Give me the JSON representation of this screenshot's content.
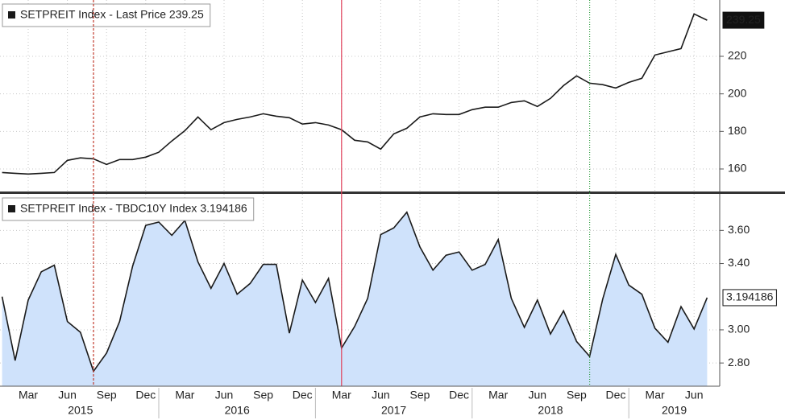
{
  "chart_data": [
    {
      "type": "line",
      "series": [
        {
          "name": "SETPREIT Index - Last Price 239.25",
          "color": "#1a1a1a",
          "values": [
            158.1,
            157.7,
            157.3,
            157.7,
            158.1,
            164.6,
            165.9,
            165.4,
            162.4,
            165,
            165,
            166.3,
            168.9,
            174.9,
            180.4,
            187.7,
            180.9,
            184.7,
            186.4,
            187.7,
            189.4,
            188.1,
            187.3,
            183.9,
            184.7,
            183.4,
            180.9,
            175.3,
            174.4,
            170.6,
            178.7,
            181.7,
            187.7,
            189.4,
            189,
            189,
            191.6,
            192.9,
            192.9,
            195.4,
            196.3,
            193.3,
            197.6,
            204.4,
            209.6,
            205.7,
            204.9,
            203.1,
            206.1,
            208.3,
            220.7,
            222.4,
            224.1,
            242.6,
            239.25
          ]
        }
      ],
      "x": [
        "2015-01",
        "2015-02",
        "2015-03",
        "2015-04",
        "2015-05",
        "2015-06",
        "2015-07",
        "2015-08",
        "2015-09",
        "2015-10",
        "2015-11",
        "2015-12",
        "2016-01",
        "2016-02",
        "2016-03",
        "2016-04",
        "2016-05",
        "2016-06",
        "2016-07",
        "2016-08",
        "2016-09",
        "2016-10",
        "2016-11",
        "2016-12",
        "2017-01",
        "2017-02",
        "2017-03",
        "2017-04",
        "2017-05",
        "2017-06",
        "2017-07",
        "2017-08",
        "2017-09",
        "2017-10",
        "2017-11",
        "2017-12",
        "2018-01",
        "2018-02",
        "2018-03",
        "2018-04",
        "2018-05",
        "2018-06",
        "2018-07",
        "2018-08",
        "2018-09",
        "2018-10",
        "2018-11",
        "2018-12",
        "2019-01",
        "2019-02",
        "2019-03",
        "2019-04",
        "2019-05",
        "2019-06",
        "2019-07"
      ],
      "ylim": [
        148,
        250
      ],
      "yticks": [
        160,
        180,
        200,
        220
      ],
      "grid": true,
      "event_lines": [
        {
          "x": "2015-08",
          "color": "#c0392b",
          "style": "dashed"
        },
        {
          "x": "2017-03",
          "color": "#e0405a",
          "style": "solid"
        },
        {
          "x": "2018-10",
          "color": "#2e9e3e",
          "style": "dotted"
        }
      ]
    },
    {
      "type": "area",
      "series": [
        {
          "name": "SETPREIT Index - TBDC10Y Index 3.194186",
          "color": "#1a1a1a",
          "fill": "#cfe2fb",
          "values": [
            3.2,
            2.815,
            3.18,
            3.35,
            3.39,
            3.05,
            2.985,
            2.75,
            2.86,
            3.05,
            3.385,
            3.63,
            3.65,
            3.57,
            3.66,
            3.41,
            3.25,
            3.4,
            3.215,
            3.28,
            3.395,
            3.395,
            2.98,
            3.3,
            3.165,
            3.31,
            2.89,
            3.02,
            3.19,
            3.575,
            3.615,
            3.71,
            3.5,
            3.36,
            3.45,
            3.47,
            3.36,
            3.395,
            3.545,
            3.19,
            3.015,
            3.18,
            2.975,
            3.115,
            2.93,
            2.84,
            3.185,
            3.455,
            3.27,
            3.215,
            3.01,
            2.925,
            3.14,
            3.005,
            3.194186
          ]
        }
      ],
      "x": [
        "2015-01",
        "2015-02",
        "2015-03",
        "2015-04",
        "2015-05",
        "2015-06",
        "2015-07",
        "2015-08",
        "2015-09",
        "2015-10",
        "2015-11",
        "2015-12",
        "2016-01",
        "2016-02",
        "2016-03",
        "2016-04",
        "2016-05",
        "2016-06",
        "2016-07",
        "2016-08",
        "2016-09",
        "2016-10",
        "2016-11",
        "2016-12",
        "2017-01",
        "2017-02",
        "2017-03",
        "2017-04",
        "2017-05",
        "2017-06",
        "2017-07",
        "2017-08",
        "2017-09",
        "2017-10",
        "2017-11",
        "2017-12",
        "2018-01",
        "2018-02",
        "2018-03",
        "2018-04",
        "2018-05",
        "2018-06",
        "2018-07",
        "2018-08",
        "2018-09",
        "2018-10",
        "2018-11",
        "2018-12",
        "2019-01",
        "2019-02",
        "2019-03",
        "2019-04",
        "2019-05",
        "2019-06",
        "2019-07"
      ],
      "ylim": [
        2.66,
        3.82
      ],
      "yticks": [
        {
          "value": 2.8,
          "label": "2.80"
        },
        {
          "value": 3.0,
          "label": "3.00"
        },
        {
          "value": 3.4,
          "label": "3.40"
        },
        {
          "value": 3.6,
          "label": "3.60"
        }
      ],
      "grid": true,
      "xticks": [
        {
          "value": "2015-03",
          "label": "Mar"
        },
        {
          "value": "2015-06",
          "label": "Jun"
        },
        {
          "value": "2015-09",
          "label": "Sep"
        },
        {
          "value": "2015-12",
          "label": "Dec"
        },
        {
          "value": "2016-03",
          "label": "Mar"
        },
        {
          "value": "2016-06",
          "label": "Jun"
        },
        {
          "value": "2016-09",
          "label": "Sep"
        },
        {
          "value": "2016-12",
          "label": "Dec"
        },
        {
          "value": "2017-03",
          "label": "Mar"
        },
        {
          "value": "2017-06",
          "label": "Jun"
        },
        {
          "value": "2017-09",
          "label": "Sep"
        },
        {
          "value": "2017-12",
          "label": "Dec"
        },
        {
          "value": "2018-03",
          "label": "Mar"
        },
        {
          "value": "2018-06",
          "label": "Jun"
        },
        {
          "value": "2018-09",
          "label": "Sep"
        },
        {
          "value": "2018-12",
          "label": "Dec"
        },
        {
          "value": "2019-03",
          "label": "Mar"
        },
        {
          "value": "2019-06",
          "label": "Jun"
        }
      ],
      "years": [
        "2015",
        "2016",
        "2017",
        "2018",
        "2019"
      ]
    }
  ]
}
